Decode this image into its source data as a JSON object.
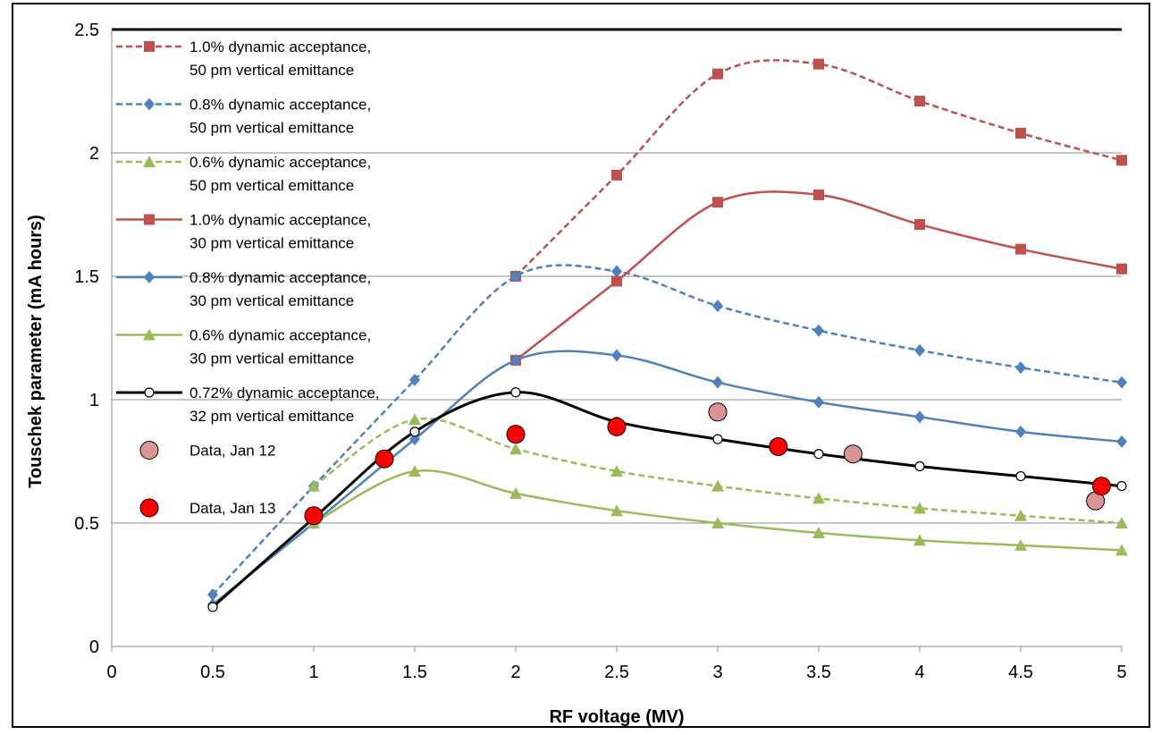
{
  "chart_data": {
    "type": "line",
    "title": "",
    "xlabel": "RF voltage (MV)",
    "ylabel": "Touschek parameter (mA hours)",
    "xlim": [
      0,
      5
    ],
    "ylim": [
      0,
      2.5
    ],
    "x_ticks": [
      "0",
      "0.5",
      "1",
      "1.5",
      "2",
      "2.5",
      "3",
      "3.5",
      "4",
      "4.5",
      "5"
    ],
    "y_ticks": [
      "0",
      "0.5",
      "1",
      "1.5",
      "2",
      "2.5"
    ],
    "grid": "horizontal",
    "legend_position": "top-left",
    "series": [
      {
        "name_lines": [
          "1.0% dynamic acceptance,",
          "50 pm vertical emittance"
        ],
        "color": "#C0504D",
        "dash": "dashed",
        "marker": "square",
        "x": [
          2,
          2.5,
          3,
          3.5,
          4,
          4.5,
          5
        ],
        "y": [
          1.5,
          1.91,
          2.32,
          2.36,
          2.21,
          2.08,
          1.97
        ]
      },
      {
        "name_lines": [
          "0.8% dynamic acceptance,",
          "50 pm vertical emittance"
        ],
        "color": "#4F81BD",
        "dash": "dashed",
        "marker": "diamond",
        "x": [
          0.5,
          1,
          1.5,
          2,
          2.5,
          3,
          3.5,
          4,
          4.5,
          5
        ],
        "y": [
          0.21,
          0.65,
          1.08,
          1.5,
          1.52,
          1.38,
          1.28,
          1.2,
          1.13,
          1.07
        ]
      },
      {
        "name_lines": [
          "0.6% dynamic acceptance,",
          "50 pm vertical emittance"
        ],
        "color": "#9BBB59",
        "dash": "dashed",
        "marker": "triangle",
        "x": [
          1,
          1.5,
          2,
          2.5,
          3,
          3.5,
          4,
          4.5,
          5
        ],
        "y": [
          0.65,
          0.92,
          0.8,
          0.71,
          0.65,
          0.6,
          0.56,
          0.53,
          0.5
        ]
      },
      {
        "name_lines": [
          "1.0% dynamic acceptance,",
          "30 pm vertical emittance"
        ],
        "color": "#C0504D",
        "dash": "solid",
        "marker": "square",
        "x": [
          2,
          2.5,
          3,
          3.5,
          4,
          4.5,
          5
        ],
        "y": [
          1.16,
          1.48,
          1.8,
          1.83,
          1.71,
          1.61,
          1.53
        ]
      },
      {
        "name_lines": [
          "0.8% dynamic acceptance,",
          "30 pm vertical emittance"
        ],
        "color": "#4F81BD",
        "dash": "solid",
        "marker": "diamond",
        "x": [
          0.5,
          1,
          1.5,
          2,
          2.5,
          3,
          3.5,
          4,
          4.5,
          5
        ],
        "y": [
          0.17,
          0.5,
          0.84,
          1.16,
          1.18,
          1.07,
          0.99,
          0.93,
          0.87,
          0.83
        ]
      },
      {
        "name_lines": [
          "0.6% dynamic acceptance,",
          "30 pm vertical emittance"
        ],
        "color": "#9BBB59",
        "dash": "solid",
        "marker": "triangle",
        "x": [
          1,
          1.5,
          2,
          2.5,
          3,
          3.5,
          4,
          4.5,
          5
        ],
        "y": [
          0.5,
          0.71,
          0.62,
          0.55,
          0.5,
          0.46,
          0.43,
          0.41,
          0.39
        ]
      },
      {
        "name_lines": [
          "0.72% dynamic acceptance,",
          "32 pm vertical emittance"
        ],
        "color": "#000000",
        "dash": "solid",
        "marker": "open-circle",
        "x": [
          0.5,
          1,
          1.5,
          2,
          2.5,
          3,
          3.5,
          4,
          4.5,
          5
        ],
        "y": [
          0.16,
          0.52,
          0.87,
          1.03,
          0.91,
          0.84,
          0.78,
          0.73,
          0.69,
          0.65
        ]
      },
      {
        "name_lines": [
          "Data, Jan 12"
        ],
        "color": "#D99594",
        "dash": "none",
        "marker": "big-circle",
        "x": [
          3.0,
          3.67,
          4.87
        ],
        "y": [
          0.95,
          0.78,
          0.59
        ]
      },
      {
        "name_lines": [
          "Data, Jan 13"
        ],
        "color": "#FF0000",
        "dash": "none",
        "marker": "big-circle",
        "x": [
          1.0,
          1.35,
          2.0,
          2.5,
          3.3,
          4.9
        ],
        "y": [
          0.53,
          0.76,
          0.86,
          0.89,
          0.81,
          0.65
        ]
      }
    ]
  }
}
